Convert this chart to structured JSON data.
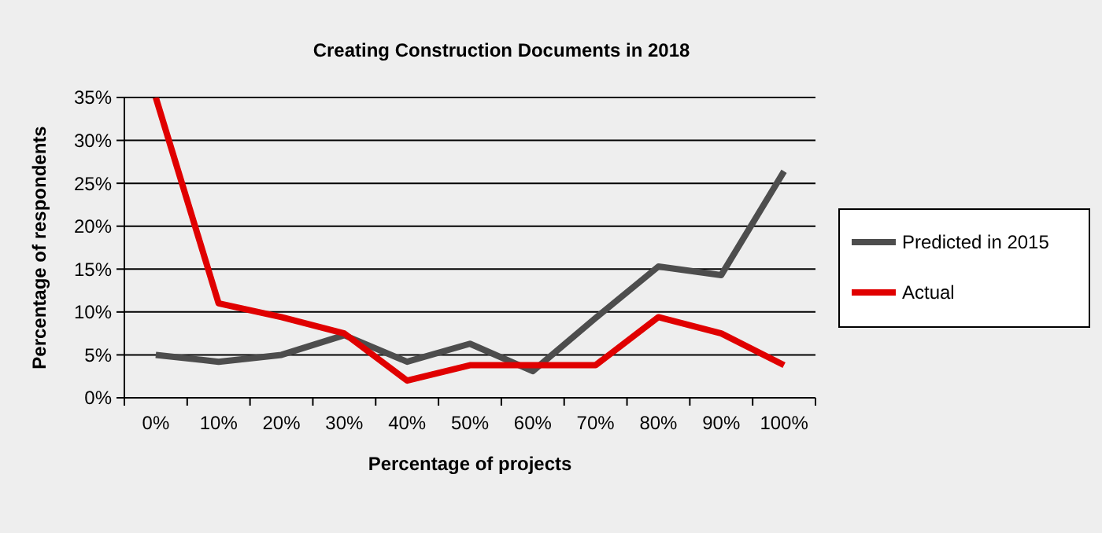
{
  "chart_data": {
    "type": "line",
    "title": "Creating Construction Documents in 2018",
    "xlabel": "Percentage of projects",
    "ylabel": "Percentage of respondents",
    "categories": [
      "0%",
      "10%",
      "20%",
      "30%",
      "40%",
      "50%",
      "60%",
      "70%",
      "80%",
      "90%",
      "100%"
    ],
    "series": [
      {
        "name": "Predicted in 2015",
        "color": "#4d4d4d",
        "values": [
          5,
          4.2,
          5,
          7.3,
          4.2,
          6.3,
          3.1,
          9.3,
          15.3,
          14.3,
          26.4
        ]
      },
      {
        "name": "Actual",
        "color": "#e00000",
        "values": [
          35,
          11,
          9.4,
          7.5,
          2,
          3.8,
          3.8,
          3.8,
          9.4,
          7.5,
          3.8
        ]
      }
    ],
    "ylim": [
      0,
      35
    ],
    "yticks": [
      {
        "value": 0,
        "label": "0%"
      },
      {
        "value": 5,
        "label": "5%"
      },
      {
        "value": 10,
        "label": "10%"
      },
      {
        "value": 15,
        "label": "15%"
      },
      {
        "value": 20,
        "label": "20%"
      },
      {
        "value": 25,
        "label": "25%"
      },
      {
        "value": 30,
        "label": "30%"
      },
      {
        "value": 35,
        "label": "35%"
      }
    ],
    "grid": "y",
    "legend": "right",
    "marker": "none",
    "line_style": "solid"
  }
}
